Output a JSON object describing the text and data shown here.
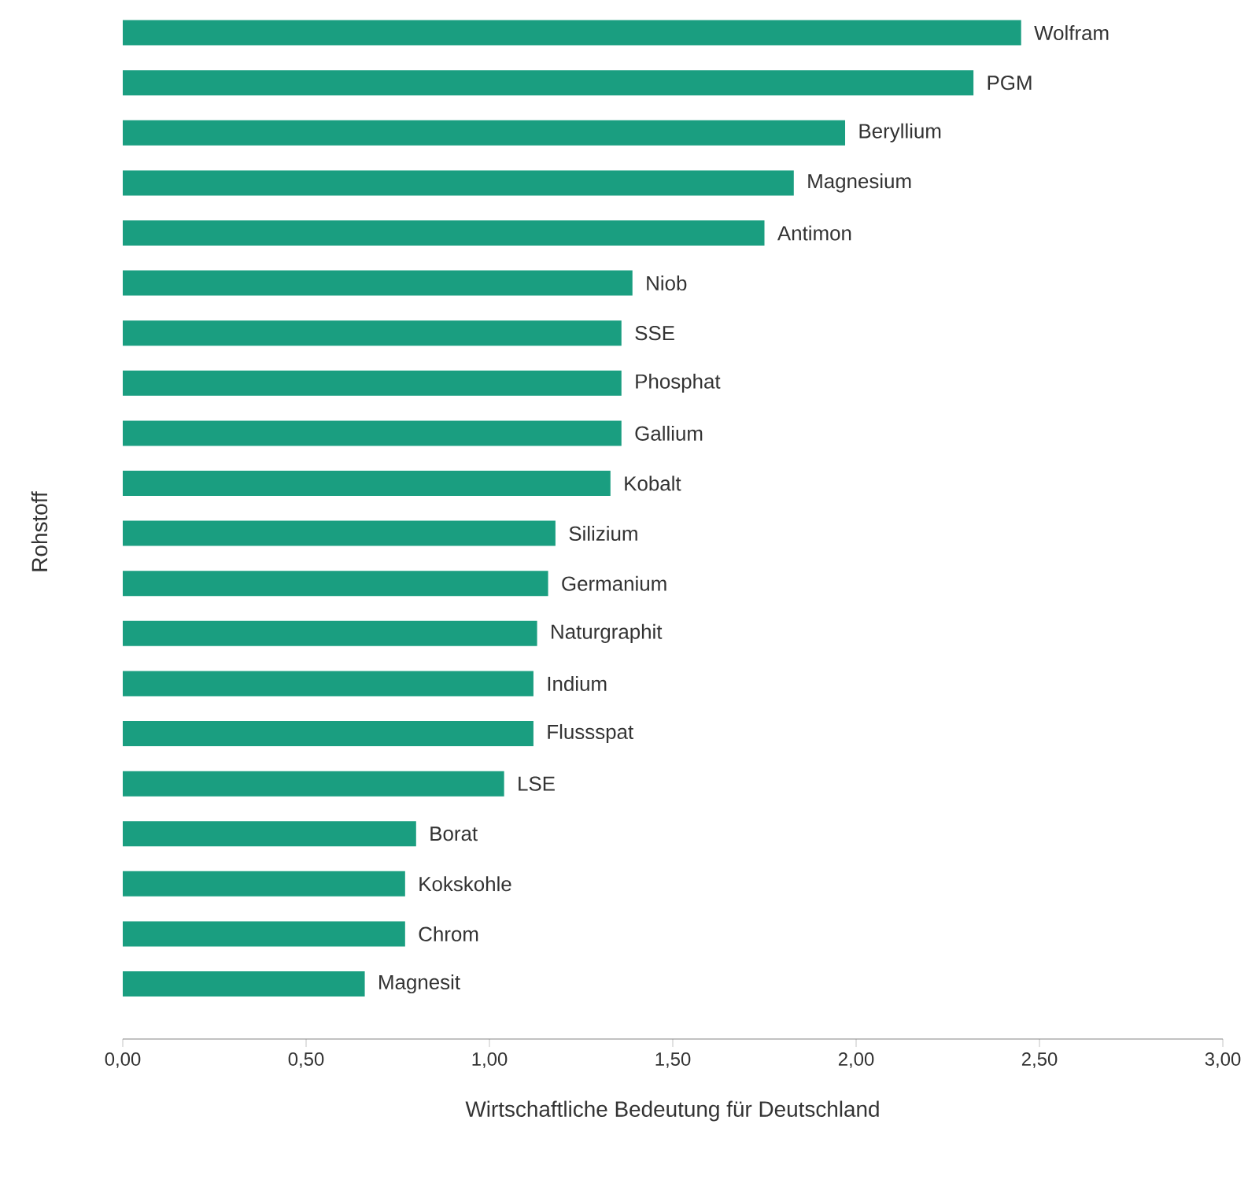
{
  "chart_data": {
    "type": "bar",
    "orientation": "horizontal",
    "xlabel": "Wirtschaftliche Bedeutung für Deutschland",
    "ylabel": "Rohstoff",
    "categories": [
      "Wolfram",
      "PGM",
      "Beryllium",
      "Magnesium",
      "Antimon",
      "Niob",
      "SSE",
      "Phosphat",
      "Gallium",
      "Kobalt",
      "Silizium",
      "Germanium",
      "Naturgraphit",
      "Indium",
      "Flussspat",
      "LSE",
      "Borat",
      "Kokskohle",
      "Chrom",
      "Magnesit"
    ],
    "values": [
      2.45,
      2.32,
      1.97,
      1.83,
      1.75,
      1.39,
      1.36,
      1.36,
      1.36,
      1.33,
      1.18,
      1.16,
      1.13,
      1.12,
      1.12,
      1.04,
      0.8,
      0.77,
      0.77,
      0.66
    ],
    "color": "#1a9e80",
    "xlim": [
      0,
      3
    ],
    "xticks": [
      {
        "value": 0,
        "label": "0,00"
      },
      {
        "value": 0.5,
        "label": "0,50"
      },
      {
        "value": 1,
        "label": "1,00"
      },
      {
        "value": 1.5,
        "label": "1,50"
      },
      {
        "value": 2,
        "label": "2,00"
      },
      {
        "value": 2.5,
        "label": "2,50"
      },
      {
        "value": 3,
        "label": "3,00"
      }
    ],
    "grid": false
  }
}
